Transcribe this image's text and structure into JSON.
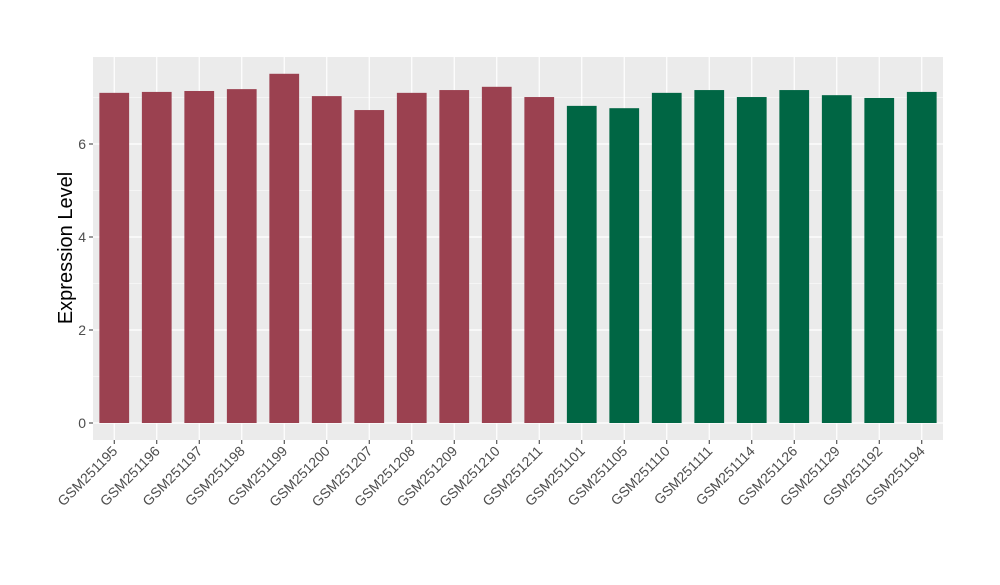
{
  "chart_data": {
    "type": "bar",
    "title": "",
    "xlabel": "",
    "ylabel": "Expression Level",
    "ylim": [
      0,
      7.8
    ],
    "yticks": [
      0,
      2,
      4,
      6
    ],
    "grid": true,
    "categories": [
      "GSM251195",
      "GSM251196",
      "GSM251197",
      "GSM251198",
      "GSM251199",
      "GSM251200",
      "GSM251207",
      "GSM251208",
      "GSM251209",
      "GSM251210",
      "GSM251211",
      "GSM251101",
      "GSM251105",
      "GSM251110",
      "GSM251111",
      "GSM251114",
      "GSM251126",
      "GSM251129",
      "GSM251192",
      "GSM251194"
    ],
    "values": [
      7.1,
      7.12,
      7.14,
      7.18,
      7.51,
      7.03,
      6.73,
      7.1,
      7.16,
      7.23,
      7.01,
      6.82,
      6.77,
      7.1,
      7.16,
      7.01,
      7.16,
      7.05,
      6.99,
      7.12
    ],
    "groups": [
      "a",
      "a",
      "a",
      "a",
      "a",
      "a",
      "a",
      "a",
      "a",
      "a",
      "a",
      "b",
      "b",
      "b",
      "b",
      "b",
      "b",
      "b",
      "b",
      "b"
    ],
    "colors": {
      "a": "#9B4150",
      "b": "#006644"
    },
    "panel_background": "#EBEBEB",
    "grid_color": "#FFFFFF"
  }
}
